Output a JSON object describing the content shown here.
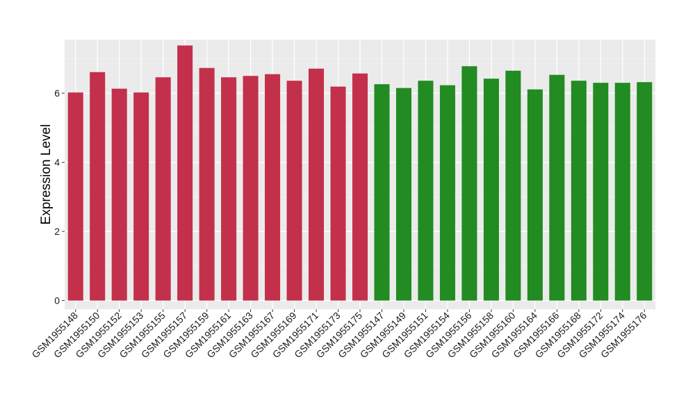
{
  "chart_data": {
    "type": "bar",
    "title": "",
    "xlabel": "",
    "ylabel": "Expression Level",
    "ylim": [
      -0.25,
      7.55
    ],
    "yticks": [
      0,
      2,
      4,
      6
    ],
    "grid": true,
    "legend": "none",
    "colors": {
      "panel_background": "#ebebeb",
      "grid_major": "#ffffff",
      "group_1": "#c3304b",
      "group_2": "#228b22"
    },
    "categories": [
      "GSM1955148",
      "GSM1955150",
      "GSM1955152",
      "GSM1955153",
      "GSM1955155",
      "GSM1955157",
      "GSM1955159",
      "GSM1955161",
      "GSM1955163",
      "GSM1955167",
      "GSM1955169",
      "GSM1955171",
      "GSM1955173",
      "GSM1955175",
      "GSM1955147",
      "GSM1955149",
      "GSM1955151",
      "GSM1955154",
      "GSM1955156",
      "GSM1955158",
      "GSM1955160",
      "GSM1955164",
      "GSM1955166",
      "GSM1955168",
      "GSM1955172",
      "GSM1955174",
      "GSM1955176"
    ],
    "values": [
      6.02,
      6.61,
      6.13,
      6.02,
      6.46,
      7.38,
      6.73,
      6.46,
      6.5,
      6.55,
      6.36,
      6.71,
      6.19,
      6.57,
      6.26,
      6.15,
      6.36,
      6.23,
      6.78,
      6.42,
      6.65,
      6.11,
      6.53,
      6.36,
      6.3,
      6.3,
      6.32
    ],
    "bar_groups": [
      "group_1",
      "group_1",
      "group_1",
      "group_1",
      "group_1",
      "group_1",
      "group_1",
      "group_1",
      "group_1",
      "group_1",
      "group_1",
      "group_1",
      "group_1",
      "group_1",
      "group_2",
      "group_2",
      "group_2",
      "group_2",
      "group_2",
      "group_2",
      "group_2",
      "group_2",
      "group_2",
      "group_2",
      "group_2",
      "group_2",
      "group_2"
    ]
  }
}
